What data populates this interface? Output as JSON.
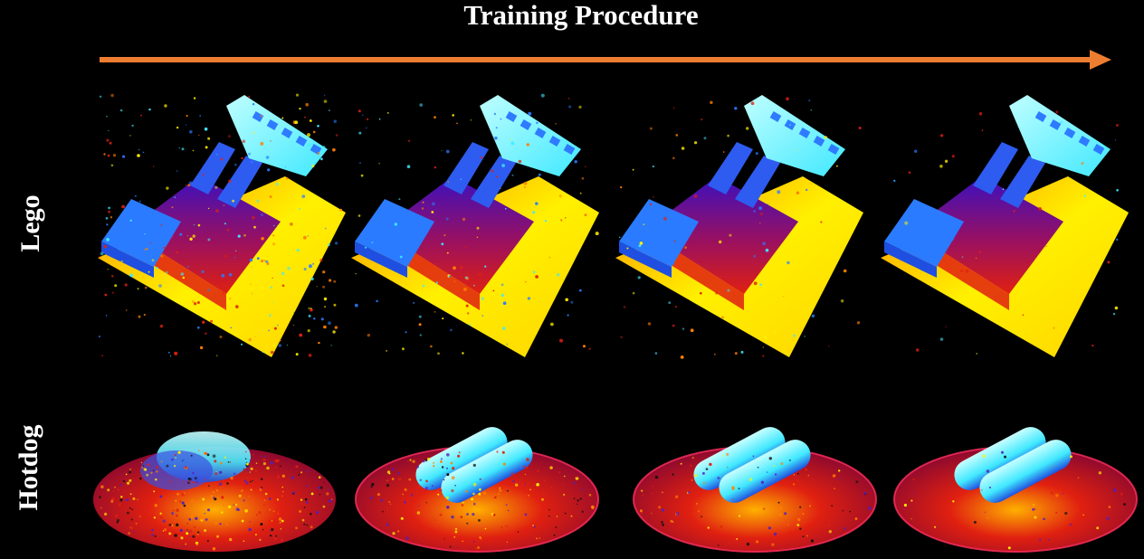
{
  "title": "Training Procedure",
  "row_labels": {
    "lego": "Lego",
    "hotdog": "Hotdog"
  },
  "colors": {
    "background": "#000000",
    "arrow": "#ED7D31",
    "text": "#FFFFFF",
    "pointcloud_low": "#FFF000",
    "pointcloud_mid": "#E02010",
    "pointcloud_dark": "#3A10C0",
    "pointcloud_high": "#40E8FF"
  },
  "stages": 4,
  "scenes": [
    "Lego",
    "Hotdog"
  ]
}
